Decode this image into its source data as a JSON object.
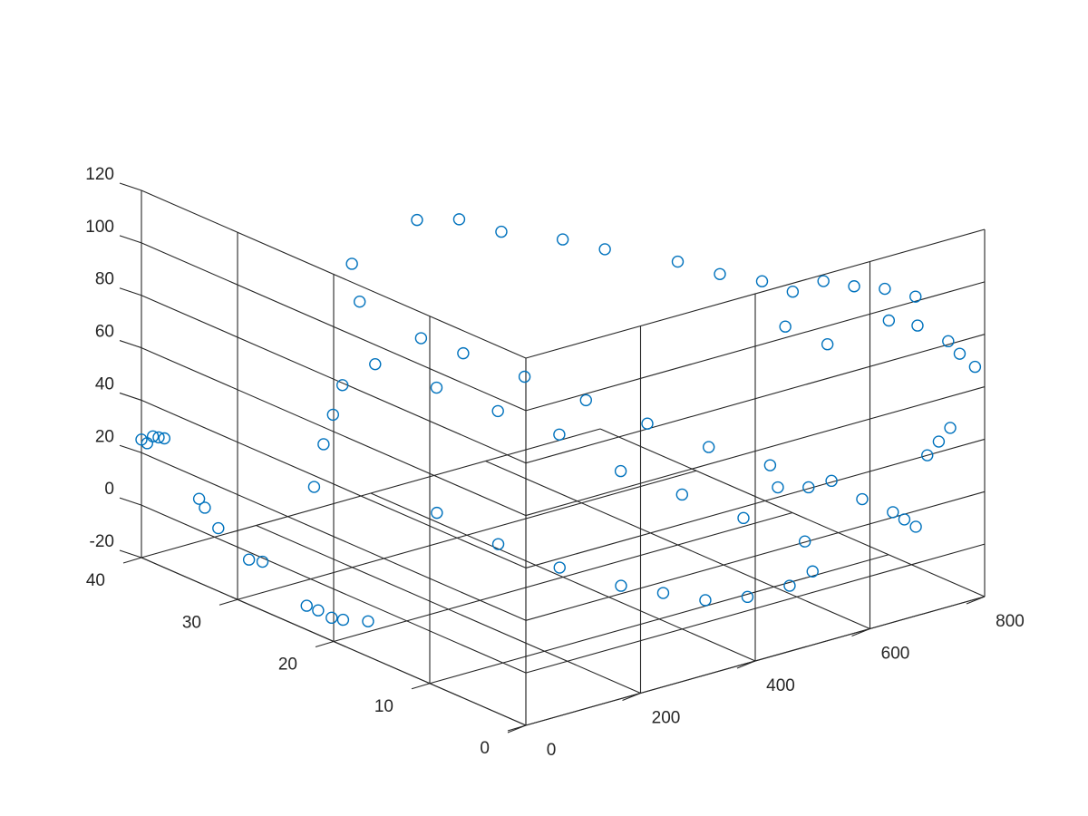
{
  "chart_data": {
    "type": "scatter",
    "title": "",
    "xlabel": "",
    "ylabel": "",
    "zlabel": "",
    "xlim": [
      0,
      800
    ],
    "ylim": [
      0,
      40
    ],
    "zlim": [
      -20,
      120
    ],
    "grid": true,
    "marker": "open-circle",
    "series_color": "#0072BD",
    "x_ticks": [
      {
        "value": 0,
        "label": "0"
      },
      {
        "value": 200,
        "label": "200"
      },
      {
        "value": 400,
        "label": "400"
      },
      {
        "value": 600,
        "label": "600"
      },
      {
        "value": 800,
        "label": "800"
      }
    ],
    "y_ticks": [
      {
        "value": 0,
        "label": "0"
      },
      {
        "value": 10,
        "label": "10"
      },
      {
        "value": 20,
        "label": "20"
      },
      {
        "value": 30,
        "label": "30"
      },
      {
        "value": 40,
        "label": "40"
      }
    ],
    "z_ticks": [
      {
        "value": -20,
        "label": "-20"
      },
      {
        "value": 0,
        "label": "0"
      },
      {
        "value": 20,
        "label": "20"
      },
      {
        "value": 40,
        "label": "40"
      },
      {
        "value": 60,
        "label": "60"
      },
      {
        "value": 80,
        "label": "80"
      },
      {
        "value": 100,
        "label": "100"
      },
      {
        "value": 120,
        "label": "120"
      }
    ],
    "series": [
      {
        "values": [
          [
            0,
            40,
            25
          ],
          [
            10,
            40,
            23
          ],
          [
            20,
            40,
            25
          ],
          [
            30,
            40,
            24
          ],
          [
            40,
            40,
            23
          ],
          [
            0,
            34,
            12
          ],
          [
            0,
            32,
            4
          ],
          [
            10,
            34,
            8
          ],
          [
            10,
            28,
            -3
          ],
          [
            20,
            30,
            -6
          ],
          [
            20,
            24,
            -14
          ],
          [
            30,
            22,
            -16
          ],
          [
            40,
            24,
            -17
          ],
          [
            50,
            22,
            -18
          ],
          [
            60,
            20,
            -16
          ],
          [
            700,
            14,
            80
          ],
          [
            720,
            12,
            86
          ],
          [
            740,
            10,
            86
          ],
          [
            760,
            8,
            87
          ],
          [
            780,
            6,
            86
          ],
          [
            700,
            4,
            85
          ],
          [
            750,
            4,
            80
          ],
          [
            770,
            2,
            76
          ],
          [
            790,
            2,
            70
          ],
          [
            800,
            1,
            66
          ],
          [
            600,
            4,
            30
          ],
          [
            620,
            2,
            25
          ],
          [
            640,
            0,
            22
          ],
          [
            660,
            0,
            18
          ],
          [
            680,
            0,
            14
          ],
          [
            560,
            4,
            30
          ],
          [
            540,
            6,
            28
          ],
          [
            700,
            0,
            40
          ],
          [
            720,
            0,
            44
          ],
          [
            740,
            0,
            48
          ],
          [
            380,
            34,
            95
          ],
          [
            420,
            32,
            96
          ],
          [
            460,
            30,
            92
          ],
          [
            500,
            26,
            93
          ],
          [
            540,
            24,
            90
          ],
          [
            600,
            20,
            88
          ],
          [
            640,
            18,
            84
          ],
          [
            680,
            16,
            82
          ],
          [
            620,
            10,
            78
          ],
          [
            660,
            8,
            72
          ],
          [
            300,
            36,
            80
          ],
          [
            280,
            34,
            70
          ],
          [
            320,
            30,
            60
          ],
          [
            360,
            28,
            55
          ],
          [
            400,
            24,
            50
          ],
          [
            440,
            20,
            45
          ],
          [
            480,
            16,
            40
          ],
          [
            520,
            12,
            35
          ],
          [
            560,
            8,
            32
          ],
          [
            250,
            34,
            40
          ],
          [
            200,
            32,
            35
          ],
          [
            150,
            30,
            30
          ],
          [
            100,
            28,
            20
          ],
          [
            180,
            20,
            18
          ],
          [
            220,
            16,
            10
          ],
          [
            260,
            12,
            5
          ],
          [
            300,
            8,
            2
          ],
          [
            340,
            6,
            0
          ],
          [
            380,
            4,
            -2
          ],
          [
            420,
            2,
            0
          ],
          [
            460,
            0,
            5
          ],
          [
            500,
            0,
            8
          ],
          [
            520,
            2,
            15
          ],
          [
            480,
            6,
            20
          ],
          [
            440,
            10,
            25
          ],
          [
            400,
            14,
            30
          ],
          [
            360,
            18,
            40
          ],
          [
            320,
            22,
            45
          ],
          [
            280,
            26,
            50
          ],
          [
            240,
            30,
            55
          ]
        ]
      }
    ]
  }
}
